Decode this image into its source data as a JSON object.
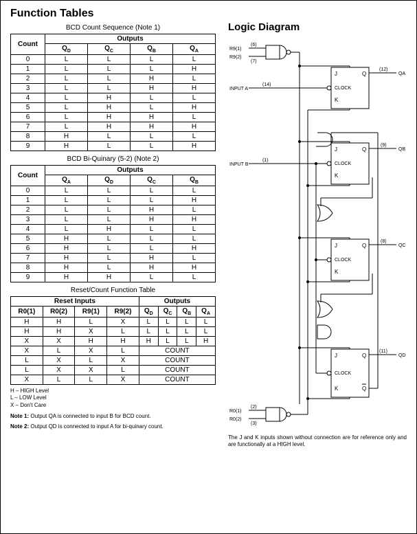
{
  "headings": {
    "functionTables": "Function Tables",
    "logicDiagram": "Logic Diagram"
  },
  "colors": {
    "fg": "#000000",
    "bg": "#ffffff"
  },
  "table1": {
    "caption": "BCD Count Sequence (Note 1)",
    "countHeader": "Count",
    "outputsHeader": "Outputs",
    "columns": [
      "QD",
      "QC",
      "QB",
      "QA"
    ],
    "rows": [
      {
        "count": "0",
        "cells": [
          "L",
          "L",
          "L",
          "L"
        ]
      },
      {
        "count": "1",
        "cells": [
          "L",
          "L",
          "L",
          "H"
        ]
      },
      {
        "count": "2",
        "cells": [
          "L",
          "L",
          "H",
          "L"
        ]
      },
      {
        "count": "3",
        "cells": [
          "L",
          "L",
          "H",
          "H"
        ]
      },
      {
        "count": "4",
        "cells": [
          "L",
          "H",
          "L",
          "L"
        ]
      },
      {
        "count": "5",
        "cells": [
          "L",
          "H",
          "L",
          "H"
        ]
      },
      {
        "count": "6",
        "cells": [
          "L",
          "H",
          "H",
          "L"
        ]
      },
      {
        "count": "7",
        "cells": [
          "L",
          "H",
          "H",
          "H"
        ]
      },
      {
        "count": "8",
        "cells": [
          "H",
          "L",
          "L",
          "L"
        ]
      },
      {
        "count": "9",
        "cells": [
          "H",
          "L",
          "L",
          "H"
        ]
      }
    ]
  },
  "table2": {
    "caption": "BCD Bi-Quinary (5-2) (Note 2)",
    "countHeader": "Count",
    "outputsHeader": "Outputs",
    "columns": [
      "QA",
      "QD",
      "QC",
      "QB"
    ],
    "rows": [
      {
        "count": "0",
        "cells": [
          "L",
          "L",
          "L",
          "L"
        ]
      },
      {
        "count": "1",
        "cells": [
          "L",
          "L",
          "L",
          "H"
        ]
      },
      {
        "count": "2",
        "cells": [
          "L",
          "L",
          "H",
          "L"
        ]
      },
      {
        "count": "3",
        "cells": [
          "L",
          "L",
          "H",
          "H"
        ]
      },
      {
        "count": "4",
        "cells": [
          "L",
          "H",
          "L",
          "L"
        ]
      },
      {
        "count": "5",
        "cells": [
          "H",
          "L",
          "L",
          "L"
        ]
      },
      {
        "count": "6",
        "cells": [
          "H",
          "L",
          "L",
          "H"
        ]
      },
      {
        "count": "7",
        "cells": [
          "H",
          "L",
          "H",
          "L"
        ]
      },
      {
        "count": "8",
        "cells": [
          "H",
          "L",
          "H",
          "H"
        ]
      },
      {
        "count": "9",
        "cells": [
          "H",
          "H",
          "L",
          "L"
        ]
      }
    ]
  },
  "table3": {
    "caption": "Reset/Count Function Table",
    "resetHeader": "Reset Inputs",
    "outputsHeader": "Outputs",
    "resetCols": [
      "R0(1)",
      "R0(2)",
      "R9(1)",
      "R9(2)"
    ],
    "outputCols": [
      "QD",
      "QC",
      "QB",
      "QA"
    ],
    "rows": [
      {
        "r": [
          "H",
          "H",
          "L",
          "X"
        ],
        "o": [
          "L",
          "L",
          "L",
          "L"
        ],
        "count": false
      },
      {
        "r": [
          "H",
          "H",
          "X",
          "L"
        ],
        "o": [
          "L",
          "L",
          "L",
          "L"
        ],
        "count": false
      },
      {
        "r": [
          "X",
          "X",
          "H",
          "H"
        ],
        "o": [
          "H",
          "L",
          "L",
          "H"
        ],
        "count": false
      },
      {
        "r": [
          "X",
          "L",
          "X",
          "L"
        ],
        "o": [],
        "count": true,
        "countLabel": "COUNT"
      },
      {
        "r": [
          "L",
          "X",
          "L",
          "X"
        ],
        "o": [],
        "count": true,
        "countLabel": "COUNT"
      },
      {
        "r": [
          "L",
          "X",
          "X",
          "L"
        ],
        "o": [],
        "count": true,
        "countLabel": "COUNT"
      },
      {
        "r": [
          "X",
          "L",
          "L",
          "X"
        ],
        "o": [],
        "count": true,
        "countLabel": "COUNT"
      }
    ]
  },
  "legend": {
    "h": "H – HIGH Level",
    "l": "L – LOW Level",
    "x": "X – Don't Care"
  },
  "notes": {
    "note1Label": "Note 1:",
    "note1Text": " Output QA is connected to input B for BCD count.",
    "note2Label": "Note 2:",
    "note2Text": " Output QD is connected to input A for bi-quinary count."
  },
  "diagram": {
    "labels": {
      "r91": "R9(1)",
      "r91pin": "(6)",
      "r92": "R9(2)",
      "r92pin": "(7)",
      "inputA": "INPUT A",
      "inputApin": "(14)",
      "inputB": "INPUT B",
      "inputBpin": "(1)",
      "r01": "R0(1)",
      "r01pin": "(2)",
      "r02": "R0(2)",
      "r02pin": "(3)",
      "qa": "QA",
      "qapin": "(12)",
      "qb": "QB",
      "qbpin": "(9)",
      "qc": "QC",
      "qcpin": "(8)",
      "qd": "QD",
      "qdpin": "(11)",
      "J": "J",
      "K": "K",
      "Q": "Q",
      "Qbar": "Q",
      "CLOCK": "CLOCK"
    },
    "caption": "The J and K inputs shown without connection are for reference only and are functionally at a HIGH level."
  }
}
